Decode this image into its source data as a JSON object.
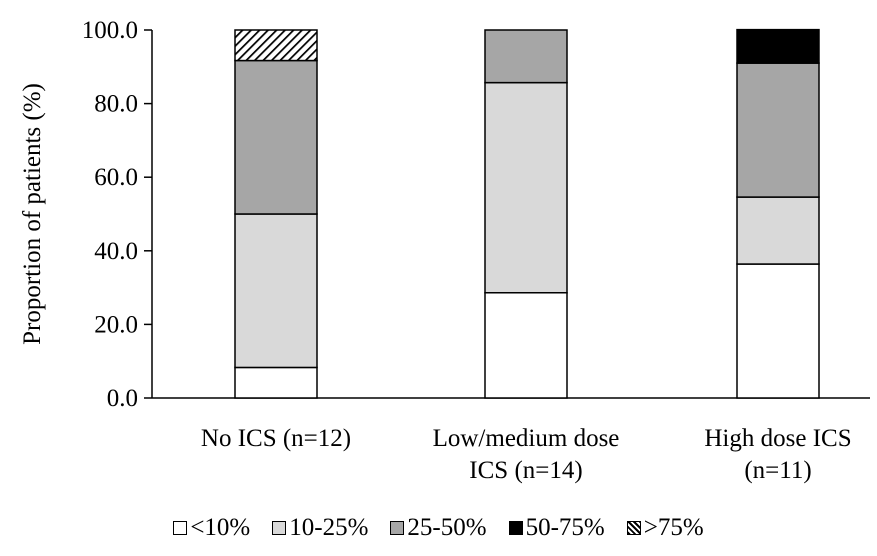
{
  "chart_data": {
    "type": "bar",
    "stacked": true,
    "categories": [
      [
        "No ICS (n=12)"
      ],
      [
        "Low/medium dose",
        "ICS (n=14)"
      ],
      [
        "High dose ICS",
        "(n=11)"
      ]
    ],
    "series": [
      {
        "name": "<10%",
        "color": "#ffffff",
        "values": [
          8.3,
          28.6,
          36.4
        ]
      },
      {
        "name": "10-25%",
        "color": "#d9d9d9",
        "values": [
          41.7,
          57.1,
          18.2
        ]
      },
      {
        "name": "25-50%",
        "color": "#a6a6a6",
        "values": [
          41.7,
          14.3,
          36.4
        ]
      },
      {
        "name": "50-75%",
        "color": "#000000",
        "values": [
          0.0,
          0.0,
          9.1
        ]
      },
      {
        "name": ">75%",
        "color": "hatch",
        "values": [
          8.3,
          0.0,
          0.0
        ]
      }
    ],
    "ylabel": "Proportion of patients (%)",
    "ylim": [
      0,
      100
    ],
    "yticks": [
      "0.0",
      "20.0",
      "40.0",
      "60.0",
      "80.0",
      "100.0"
    ],
    "legend_position": "bottom",
    "grid": false
  }
}
